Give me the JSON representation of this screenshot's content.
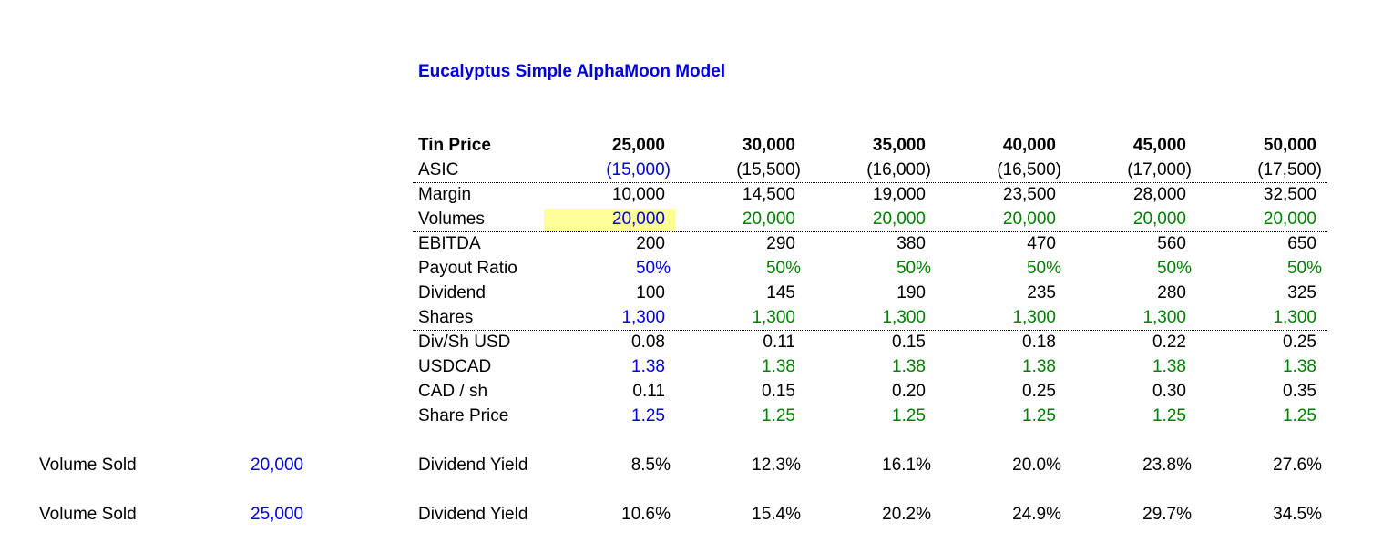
{
  "title": "Eucalyptus Simple AlphaMoon Model",
  "rows": [
    {
      "label": "Tin Price",
      "values": [
        "25,000",
        "30,000",
        "35,000",
        "40,000",
        "45,000",
        "50,000"
      ],
      "bold": true,
      "colors": [
        "black",
        "black",
        "black",
        "black",
        "black",
        "black"
      ]
    },
    {
      "label": "ASIC",
      "values": [
        "(15,000)",
        "(15,500)",
        "(16,000)",
        "(16,500)",
        "(17,000)",
        "(17,500)"
      ],
      "colors": [
        "blue",
        "black",
        "black",
        "black",
        "black",
        "black"
      ]
    },
    {
      "label": "Margin",
      "values": [
        "10,000",
        "14,500",
        "19,000",
        "23,500",
        "28,000",
        "32,500"
      ],
      "colors": [
        "black",
        "black",
        "black",
        "black",
        "black",
        "black"
      ]
    },
    {
      "label": "Volumes",
      "values": [
        "20,000",
        "20,000",
        "20,000",
        "20,000",
        "20,000",
        "20,000"
      ],
      "colors": [
        "blue",
        "green",
        "green",
        "green",
        "green",
        "green"
      ]
    },
    {
      "label": "EBITDA",
      "values": [
        "200",
        "290",
        "380",
        "470",
        "560",
        "650"
      ],
      "colors": [
        "black",
        "black",
        "black",
        "black",
        "black",
        "black"
      ]
    },
    {
      "label": "Payout Ratio",
      "values": [
        "50%",
        "50%",
        "50%",
        "50%",
        "50%",
        "50%"
      ],
      "colors": [
        "blue",
        "green",
        "green",
        "green",
        "green",
        "green"
      ]
    },
    {
      "label": "Dividend",
      "values": [
        "100",
        "145",
        "190",
        "235",
        "280",
        "325"
      ],
      "colors": [
        "black",
        "black",
        "black",
        "black",
        "black",
        "black"
      ]
    },
    {
      "label": "Shares",
      "values": [
        "1,300",
        "1,300",
        "1,300",
        "1,300",
        "1,300",
        "1,300"
      ],
      "colors": [
        "blue",
        "green",
        "green",
        "green",
        "green",
        "green"
      ]
    },
    {
      "label": "Div/Sh USD",
      "values": [
        "0.08",
        "0.11",
        "0.15",
        "0.18",
        "0.22",
        "0.25"
      ],
      "colors": [
        "black",
        "black",
        "black",
        "black",
        "black",
        "black"
      ]
    },
    {
      "label": "USDCAD",
      "values": [
        "1.38",
        "1.38",
        "1.38",
        "1.38",
        "1.38",
        "1.38"
      ],
      "colors": [
        "blue",
        "green",
        "green",
        "green",
        "green",
        "green"
      ]
    },
    {
      "label": "CAD / sh",
      "values": [
        "0.11",
        "0.15",
        "0.20",
        "0.25",
        "0.30",
        "0.35"
      ],
      "colors": [
        "black",
        "black",
        "black",
        "black",
        "black",
        "black"
      ]
    },
    {
      "label": "Share Price",
      "values": [
        "1.25",
        "1.25",
        "1.25",
        "1.25",
        "1.25",
        "1.25"
      ],
      "colors": [
        "blue",
        "green",
        "green",
        "green",
        "green",
        "green"
      ]
    }
  ],
  "yield_rows": [
    {
      "side_label": "Volume Sold",
      "side_value": "20,000",
      "label": "Dividend Yield",
      "values": [
        "8.5%",
        "12.3%",
        "16.1%",
        "20.0%",
        "23.8%",
        "27.6%"
      ]
    },
    {
      "side_label": "Volume Sold",
      "side_value": "25,000",
      "label": "Dividend Yield",
      "values": [
        "10.6%",
        "15.4%",
        "20.2%",
        "24.9%",
        "29.7%",
        "34.5%"
      ]
    }
  ],
  "colors": {
    "blue": "#0000e0",
    "green": "#008000",
    "title": "#0000d8",
    "highlight": "#ffff99"
  }
}
